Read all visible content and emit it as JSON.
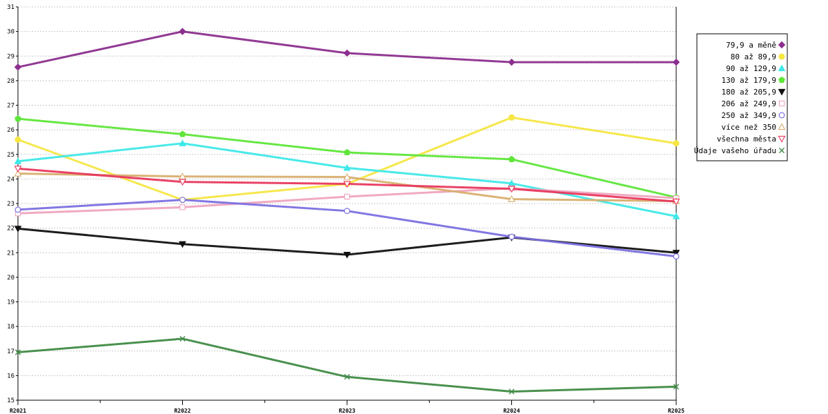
{
  "chart_data": {
    "type": "line",
    "categories": [
      "R2021",
      "R2022",
      "R2023",
      "R2024",
      "R2025"
    ],
    "ylim": [
      15,
      31
    ],
    "yticks": [
      15,
      16,
      17,
      18,
      19,
      20,
      21,
      22,
      23,
      24,
      25,
      26,
      27,
      28,
      29,
      30,
      31
    ],
    "grid": true,
    "legend_position": "right",
    "series": [
      {
        "name": "79,9 a měně",
        "color": "#8B2F8E",
        "marker": "diamond",
        "values": [
          28.55,
          30.0,
          29.12,
          28.75,
          28.75
        ]
      },
      {
        "name": "80 až 89,9",
        "color": "#F5E642",
        "marker": "circle-filled",
        "values": [
          25.6,
          23.15,
          23.8,
          26.5,
          25.45
        ]
      },
      {
        "name": "90 až 129,9",
        "color": "#3FE8E8",
        "marker": "triangle-up-filled",
        "values": [
          24.72,
          25.45,
          24.45,
          23.82,
          22.48
        ]
      },
      {
        "name": "130 až 179,9",
        "color": "#5FE63A",
        "marker": "pentagon-filled",
        "values": [
          26.45,
          25.82,
          25.08,
          24.8,
          23.25
        ]
      },
      {
        "name": "180 až 205,9",
        "color": "#111111",
        "marker": "triangle-down-filled",
        "values": [
          21.98,
          21.35,
          20.92,
          21.62,
          21.0
        ]
      },
      {
        "name": "206 až 249,9",
        "color": "#EFA4BE",
        "marker": "square-open",
        "values": [
          22.6,
          22.85,
          23.28,
          23.62,
          23.22
        ]
      },
      {
        "name": "250 až 349,9",
        "color": "#7B70E0",
        "marker": "circle-open",
        "values": [
          22.75,
          23.15,
          22.7,
          21.65,
          20.85
        ]
      },
      {
        "name": "více než 350",
        "color": "#D9AE6E",
        "marker": "triangle-up-open",
        "values": [
          24.22,
          24.1,
          24.08,
          23.18,
          23.1
        ]
      },
      {
        "name": "všechna města",
        "color": "#E8385E",
        "marker": "triangle-down-open",
        "values": [
          24.42,
          23.88,
          23.8,
          23.6,
          23.08
        ]
      },
      {
        "name": "Údaje vašeho úřadu",
        "color": "#3F8A45",
        "marker": "x",
        "values": [
          16.95,
          17.5,
          15.95,
          15.35,
          15.55
        ]
      }
    ]
  }
}
